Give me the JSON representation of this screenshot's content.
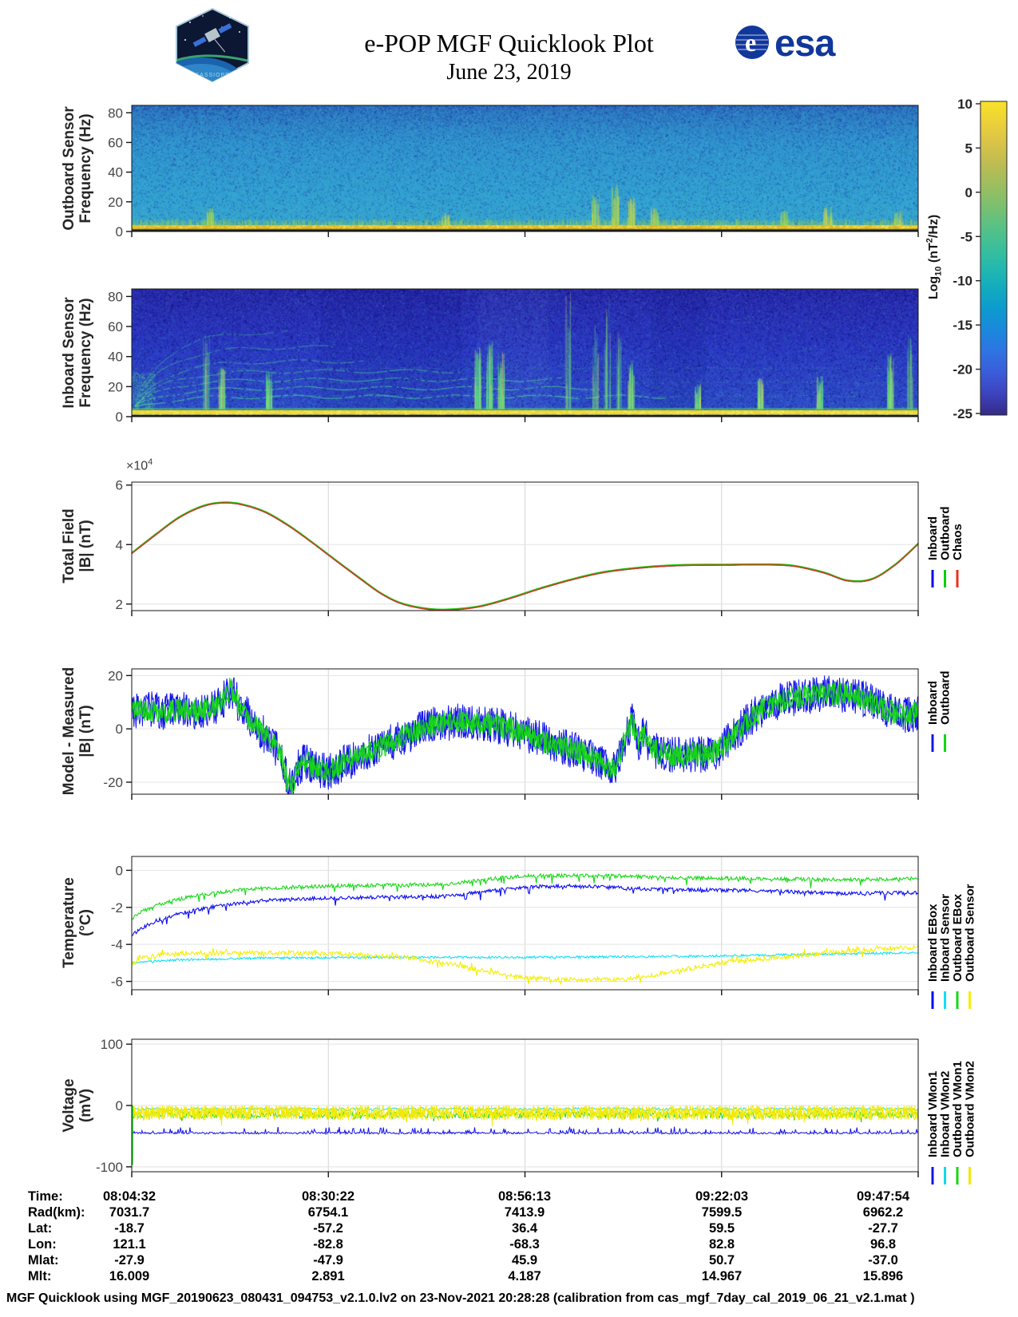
{
  "header": {
    "title": "e-POP MGF Quicklook Plot",
    "subtitle": "June 23, 2019",
    "patch_label": "CASSIOPE",
    "esa_text": "esa"
  },
  "colorbar": {
    "label_log": "Log",
    "label_sub": "10",
    "label_mid": " (nT",
    "label_sup": "2",
    "label_end": "/Hz)",
    "ticks": [
      10,
      5,
      0,
      -5,
      -10,
      -15,
      -20,
      -25
    ]
  },
  "panels": {
    "outboard_spec": {
      "ylabel1": "Outboard Sensor",
      "ylabel2": "Frequency (Hz)"
    },
    "inboard_spec": {
      "ylabel1": "Inboard Sensor",
      "ylabel2": "Frequency (Hz)"
    },
    "total_field": {
      "ylabel1": "Total Field",
      "ylabel2": "|B| (nT)",
      "exp_prefix": "×10",
      "exp_sup": "4"
    },
    "model_measured": {
      "ylabel1": "Model - Measured",
      "ylabel2": "|B| (nT)"
    },
    "temperature": {
      "ylabel1": "Temperature",
      "ylabel2": "(°C)"
    },
    "voltage": {
      "ylabel1": "Voltage",
      "ylabel2": "(mV)"
    }
  },
  "chart_data": [
    {
      "id": "outboard_spec",
      "type": "heatmap",
      "ylabel": "Outboard Sensor Frequency (Hz)",
      "yticks": [
        0,
        20,
        40,
        60,
        80
      ],
      "ylim": [
        0,
        85
      ],
      "colorbar_label": "Log10 (nT2/Hz)",
      "colorbar_range": [
        -25,
        10
      ],
      "colormap": "parula",
      "background_level_log10": -8,
      "features": {
        "description": "broadband cyan-blue noise floor, darker speckle at high frequency, intense yellow band below ~3 Hz",
        "bottom_band_hz": [
          0,
          3
        ],
        "bursts": [
          {
            "x": 0.1,
            "max_hz": 12
          },
          {
            "x": 0.4,
            "max_hz": 8
          },
          {
            "x": 0.59,
            "max_hz": 22
          },
          {
            "x": 0.615,
            "max_hz": 28
          },
          {
            "x": 0.635,
            "max_hz": 20
          },
          {
            "x": 0.665,
            "max_hz": 12
          },
          {
            "x": 0.83,
            "max_hz": 10
          },
          {
            "x": 0.885,
            "max_hz": 13
          },
          {
            "x": 0.975,
            "max_hz": 10
          }
        ]
      }
    },
    {
      "id": "inboard_spec",
      "type": "heatmap",
      "ylabel": "Inboard Sensor Frequency (Hz)",
      "yticks": [
        0,
        20,
        40,
        60,
        80
      ],
      "ylim": [
        0,
        85
      ],
      "colorbar_label": "Log10 (nT2/Hz)",
      "colorbar_range": [
        -25,
        10
      ],
      "colormap": "parula",
      "background_level_log10": -16,
      "features": {
        "description": "dark blue background with green interference harmonics rising from left edge, vertical bursts, yellow band below ~3 Hz",
        "bottom_band_hz": [
          0,
          3
        ],
        "harmonics": [
          {
            "hz": 55,
            "extent": 0.2
          },
          {
            "hz": 44,
            "extent": 0.26
          },
          {
            "hz": 34,
            "extent": 0.3
          },
          {
            "hz": 27,
            "extent": 0.42
          },
          {
            "hz": 21,
            "extent": 0.55
          },
          {
            "hz": 15,
            "extent": 0.6
          },
          {
            "hz": 9,
            "extent": 0.68
          }
        ],
        "persistent_lines_hz": [
          29,
          19,
          9.5
        ],
        "bursts": [
          {
            "x": 0.095,
            "max_hz": 55
          },
          {
            "x": 0.115,
            "max_hz": 30
          },
          {
            "x": 0.175,
            "max_hz": 28
          },
          {
            "x": 0.44,
            "max_hz": 45
          },
          {
            "x": 0.455,
            "max_hz": 50
          },
          {
            "x": 0.47,
            "max_hz": 40
          },
          {
            "x": 0.555,
            "max_hz": 85
          },
          {
            "x": 0.59,
            "max_hz": 60
          },
          {
            "x": 0.605,
            "max_hz": 80
          },
          {
            "x": 0.62,
            "max_hz": 55
          },
          {
            "x": 0.635,
            "max_hz": 35
          },
          {
            "x": 0.72,
            "max_hz": 18
          },
          {
            "x": 0.8,
            "max_hz": 22
          },
          {
            "x": 0.875,
            "max_hz": 25
          },
          {
            "x": 0.965,
            "max_hz": 40
          },
          {
            "x": 0.99,
            "max_hz": 55
          }
        ]
      }
    },
    {
      "id": "total_field",
      "type": "line",
      "ylabel": "Total Field |B| (nT)",
      "yticks": [
        2,
        4,
        6
      ],
      "ylim": [
        1.78,
        6.1
      ],
      "y_scale": 10000,
      "note": "Inboard, Outboard and Chaos model curves overlap almost exactly",
      "series": [
        {
          "name": "Inboard",
          "color": "#0a0aee"
        },
        {
          "name": "Outboard",
          "color": "#0bd00b"
        },
        {
          "name": "Chaos",
          "color": "#e8321e"
        }
      ],
      "x": [
        0,
        0.03,
        0.06,
        0.09,
        0.115,
        0.14,
        0.17,
        0.2,
        0.23,
        0.26,
        0.29,
        0.315,
        0.34,
        0.37,
        0.4,
        0.44,
        0.48,
        0.52,
        0.56,
        0.6,
        0.65,
        0.7,
        0.75,
        0.8,
        0.84,
        0.88,
        0.91,
        0.94,
        0.97,
        1
      ],
      "y_1e4": [
        3.7,
        4.32,
        4.9,
        5.28,
        5.4,
        5.34,
        5.08,
        4.62,
        4.05,
        3.45,
        2.86,
        2.38,
        2.04,
        1.85,
        1.8,
        1.9,
        2.18,
        2.52,
        2.82,
        3.06,
        3.22,
        3.3,
        3.31,
        3.32,
        3.28,
        3.05,
        2.78,
        2.82,
        3.3,
        4.02
      ]
    },
    {
      "id": "model_measured",
      "type": "line",
      "ylabel": "Model - Measured |B| (nT)",
      "yticks": [
        -20,
        0,
        20
      ],
      "ylim": [
        -24.5,
        22.5
      ],
      "series": [
        {
          "name": "Inboard",
          "color": "#1414e8",
          "noise_amp": 7
        },
        {
          "name": "Outboard",
          "color": "#14d614",
          "noise_amp": 4.5
        }
      ],
      "x": [
        0,
        0.02,
        0.04,
        0.06,
        0.08,
        0.1,
        0.115,
        0.125,
        0.135,
        0.15,
        0.165,
        0.18,
        0.19,
        0.198,
        0.203,
        0.21,
        0.22,
        0.235,
        0.25,
        0.27,
        0.3,
        0.33,
        0.36,
        0.39,
        0.42,
        0.45,
        0.48,
        0.51,
        0.54,
        0.57,
        0.6,
        0.615,
        0.628,
        0.636,
        0.644,
        0.652,
        0.66,
        0.67,
        0.685,
        0.7,
        0.715,
        0.73,
        0.745,
        0.76,
        0.78,
        0.8,
        0.82,
        0.85,
        0.88,
        0.91,
        0.935,
        0.96,
        0.98,
        1
      ],
      "y_center": [
        7,
        7.5,
        6.5,
        7,
        6.5,
        7.5,
        10,
        15,
        10,
        4,
        -1,
        -6,
        -10,
        -20,
        -23,
        -15,
        -12,
        -15,
        -16,
        -13,
        -9,
        -5,
        -1,
        2,
        3,
        2,
        0,
        -3,
        -6,
        -9,
        -13,
        -15,
        -3,
        3,
        -6,
        -2,
        -7,
        -9,
        -10,
        -10,
        -9,
        -10,
        -8,
        -4,
        2,
        7,
        10,
        12,
        13,
        13,
        11,
        7,
        5,
        6
      ]
    },
    {
      "id": "temperature",
      "type": "line",
      "ylabel": "Temperature (°C)",
      "yticks": [
        0,
        -2,
        -4,
        -6
      ],
      "ylim": [
        -6.45,
        0.75
      ],
      "series": [
        {
          "name": "Inboard EBox",
          "color": "#0a0af0",
          "noise_amp": 0.1,
          "x": [
            0,
            0.01,
            0.03,
            0.06,
            0.1,
            0.14,
            0.18,
            0.25,
            0.32,
            0.4,
            0.45,
            0.5,
            0.55,
            0.6,
            0.65,
            0.7,
            0.8,
            0.9,
            1
          ],
          "y": [
            -3.5,
            -3.2,
            -2.75,
            -2.35,
            -2,
            -1.75,
            -1.6,
            -1.5,
            -1.45,
            -1.4,
            -1.15,
            -0.9,
            -0.85,
            -0.9,
            -1,
            -1.05,
            -1.1,
            -1.25,
            -1.2
          ]
        },
        {
          "name": "Inboard Sensor",
          "color": "#10e0f8",
          "noise_amp": 0.06,
          "x": [
            0,
            0.05,
            0.15,
            0.3,
            0.5,
            0.7,
            0.85,
            1
          ],
          "y": [
            -5,
            -4.85,
            -4.75,
            -4.7,
            -4.7,
            -4.65,
            -4.55,
            -4.45
          ]
        },
        {
          "name": "Outboard EBox",
          "color": "#16d816",
          "noise_amp": 0.1,
          "x": [
            0,
            0.01,
            0.03,
            0.06,
            0.1,
            0.14,
            0.18,
            0.25,
            0.32,
            0.4,
            0.44,
            0.47,
            0.5,
            0.55,
            0.6,
            0.7,
            0.8,
            0.9,
            1
          ],
          "y": [
            -2.6,
            -2.3,
            -1.9,
            -1.55,
            -1.25,
            -1.05,
            -0.95,
            -0.85,
            -0.8,
            -0.75,
            -0.55,
            -0.4,
            -0.3,
            -0.28,
            -0.3,
            -0.4,
            -0.45,
            -0.5,
            -0.45
          ]
        },
        {
          "name": "Outboard Sensor",
          "color": "#f4ee06",
          "noise_amp": 0.13,
          "x": [
            0,
            0.01,
            0.04,
            0.08,
            0.15,
            0.22,
            0.3,
            0.35,
            0.4,
            0.45,
            0.5,
            0.55,
            0.6,
            0.63,
            0.67,
            0.71,
            0.75,
            0.8,
            0.85,
            0.9,
            0.95,
            1
          ],
          "y": [
            -5.1,
            -4.8,
            -4.55,
            -4.45,
            -4.45,
            -4.5,
            -4.55,
            -4.7,
            -5,
            -5.45,
            -5.8,
            -5.9,
            -5.9,
            -5.85,
            -5.6,
            -5.3,
            -5,
            -4.8,
            -4.6,
            -4.4,
            -4.25,
            -4.15
          ]
        }
      ]
    },
    {
      "id": "voltage",
      "type": "line",
      "ylabel": "Voltage (mV)",
      "yticks": [
        100,
        0,
        -100
      ],
      "ylim": [
        -108,
        108
      ],
      "series": [
        {
          "name": "Inboard VMon1",
          "color": "#1414e8",
          "center": -45,
          "noise_amp": 1.5
        },
        {
          "name": "Inboard VMon2",
          "color": "#12dce8",
          "center": -6,
          "noise_amp": 2.5
        },
        {
          "name": "Outboard VMon1",
          "color": "#14d614",
          "center": -15,
          "noise_amp": 6
        },
        {
          "name": "Outboard VMon2",
          "color": "#f0ea08",
          "center": -12,
          "noise_amp": 12
        }
      ],
      "left_edge_spike": {
        "series": "Outboard VMon1",
        "from_mv": 0,
        "to_mv": -97
      }
    }
  ],
  "table": {
    "rows": [
      {
        "label": "Time:",
        "values": [
          "08:04:32",
          "08:30:22",
          "08:56:13",
          "09:22:03",
          "09:47:54"
        ]
      },
      {
        "label": "Rad(km):",
        "values": [
          "7031.7",
          "6754.1",
          "7413.9",
          "7599.5",
          "6962.2"
        ]
      },
      {
        "label": "Lat:",
        "values": [
          "-18.7",
          "-57.2",
          "36.4",
          "59.5",
          "-27.7"
        ]
      },
      {
        "label": "Lon:",
        "values": [
          "121.1",
          "-82.8",
          "-68.3",
          "82.8",
          "96.8"
        ]
      },
      {
        "label": "Mlat:",
        "values": [
          "-27.9",
          "-47.9",
          "45.9",
          "50.7",
          "-37.0"
        ]
      },
      {
        "label": "Mlt:",
        "values": [
          "16.009",
          "2.891",
          "4.187",
          "14.967",
          "15.896"
        ]
      }
    ]
  },
  "footer": {
    "text": "MGF Quicklook using MGF_20190623_080431_094753_v2.1.0.lv2 on 23-Nov-2021 20:28:28 (calibration from cas_mgf_7day_cal_2019_06_21_v2.1.mat )"
  }
}
